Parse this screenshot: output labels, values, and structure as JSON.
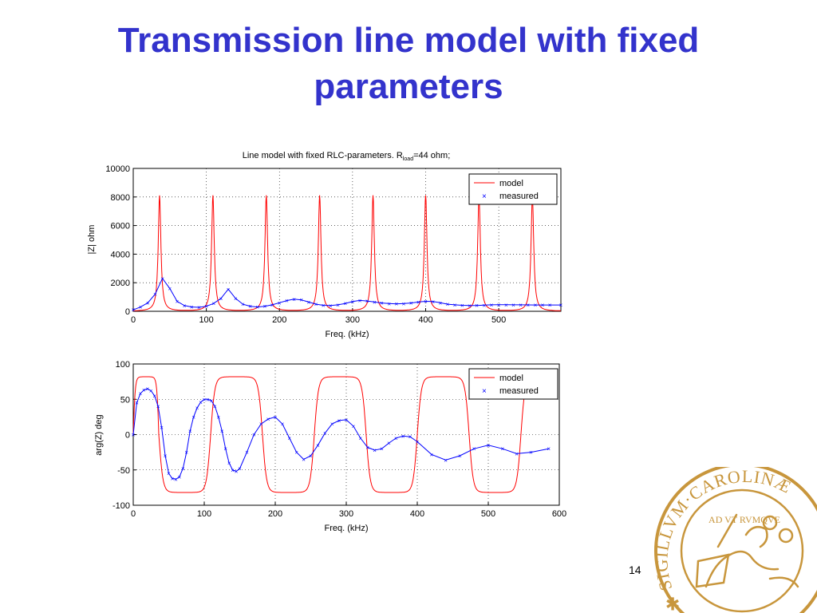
{
  "slide": {
    "title": "Transmission line model with fixed parameters",
    "page_number": "14"
  },
  "seal": {
    "text": "✱ SIGILLVM·CAROLINÆ",
    "inner_text": "AD VT RVMQVE"
  },
  "chart_data": [
    {
      "type": "line",
      "title": "Line model with fixed RLC-parameters. R",
      "title_subscript": "load",
      "title_suffix": "=44 ohm;",
      "xlabel": "Freq. (kHz)",
      "ylabel": "|Z| ohm",
      "xlim": [
        0,
        585
      ],
      "ylim": [
        0,
        10000
      ],
      "xticks": [
        0,
        100,
        200,
        300,
        400,
        500
      ],
      "yticks": [
        0,
        2000,
        4000,
        6000,
        8000,
        10000
      ],
      "grid": true,
      "legend": "top-right",
      "series": [
        {
          "name": "model",
          "style": "line",
          "color": "#ff0000",
          "x": [
            0,
            36,
            109,
            182,
            255,
            328,
            400,
            473,
            546,
            585
          ],
          "values": [
            50,
            8200,
            8200,
            8200,
            8200,
            8200,
            8200,
            8200,
            8200,
            400
          ]
        },
        {
          "name": "measured",
          "style": "x-markers-line",
          "color": "#0000ff",
          "x": [
            0,
            10,
            20,
            30,
            40,
            50,
            60,
            70,
            80,
            90,
            100,
            110,
            120,
            130,
            140,
            150,
            160,
            170,
            180,
            190,
            200,
            210,
            220,
            230,
            240,
            250,
            260,
            270,
            280,
            290,
            300,
            310,
            320,
            330,
            340,
            350,
            360,
            370,
            380,
            390,
            400,
            410,
            420,
            430,
            440,
            450,
            460,
            470,
            480,
            490,
            500,
            510,
            520,
            530,
            540,
            550,
            560,
            570,
            585
          ],
          "values": [
            100,
            300,
            600,
            1200,
            2300,
            1600,
            700,
            400,
            300,
            280,
            350,
            550,
            900,
            1550,
            900,
            500,
            350,
            300,
            350,
            450,
            600,
            750,
            850,
            800,
            650,
            500,
            420,
            400,
            450,
            550,
            680,
            760,
            720,
            650,
            580,
            540,
            520,
            540,
            580,
            650,
            700,
            680,
            600,
            500,
            450,
            420,
            400,
            410,
            430,
            450,
            460,
            460,
            455,
            450,
            445,
            440,
            440,
            440,
            440
          ]
        }
      ]
    },
    {
      "type": "line",
      "title": "",
      "xlabel": "Freq. (kHz)",
      "ylabel": "arg(Z) deg",
      "xlim": [
        0,
        600
      ],
      "ylim": [
        -100,
        100
      ],
      "xticks": [
        0,
        100,
        200,
        300,
        400,
        500,
        600
      ],
      "yticks": [
        -100,
        -50,
        0,
        50,
        100
      ],
      "grid": true,
      "legend": "top-right",
      "series": [
        {
          "name": "model",
          "style": "line",
          "color": "#ff0000",
          "resonances_x": [
            0,
            36,
            109,
            182,
            255,
            328,
            400,
            473,
            546
          ],
          "amplitude": 82
        },
        {
          "name": "measured",
          "style": "x-markers-line",
          "color": "#0000ff",
          "x": [
            0,
            5,
            10,
            15,
            20,
            25,
            30,
            35,
            40,
            45,
            50,
            55,
            60,
            65,
            70,
            75,
            80,
            85,
            90,
            95,
            100,
            105,
            110,
            115,
            120,
            125,
            130,
            135,
            140,
            145,
            150,
            160,
            170,
            180,
            190,
            200,
            210,
            220,
            230,
            240,
            250,
            260,
            270,
            280,
            290,
            300,
            310,
            320,
            330,
            340,
            350,
            360,
            370,
            380,
            390,
            400,
            420,
            440,
            460,
            480,
            500,
            520,
            540,
            560,
            585
          ],
          "values": [
            0,
            45,
            58,
            63,
            65,
            62,
            55,
            40,
            10,
            -30,
            -55,
            -62,
            -63,
            -60,
            -48,
            -25,
            5,
            25,
            38,
            46,
            50,
            50,
            48,
            40,
            25,
            5,
            -20,
            -40,
            -50,
            -52,
            -48,
            -25,
            0,
            15,
            22,
            25,
            15,
            -5,
            -25,
            -35,
            -30,
            -15,
            2,
            15,
            20,
            21,
            12,
            -5,
            -18,
            -22,
            -20,
            -12,
            -5,
            -2,
            -3,
            -10,
            -28,
            -36,
            -30,
            -20,
            -15,
            -20,
            -27,
            -25,
            -20
          ]
        }
      ]
    }
  ]
}
